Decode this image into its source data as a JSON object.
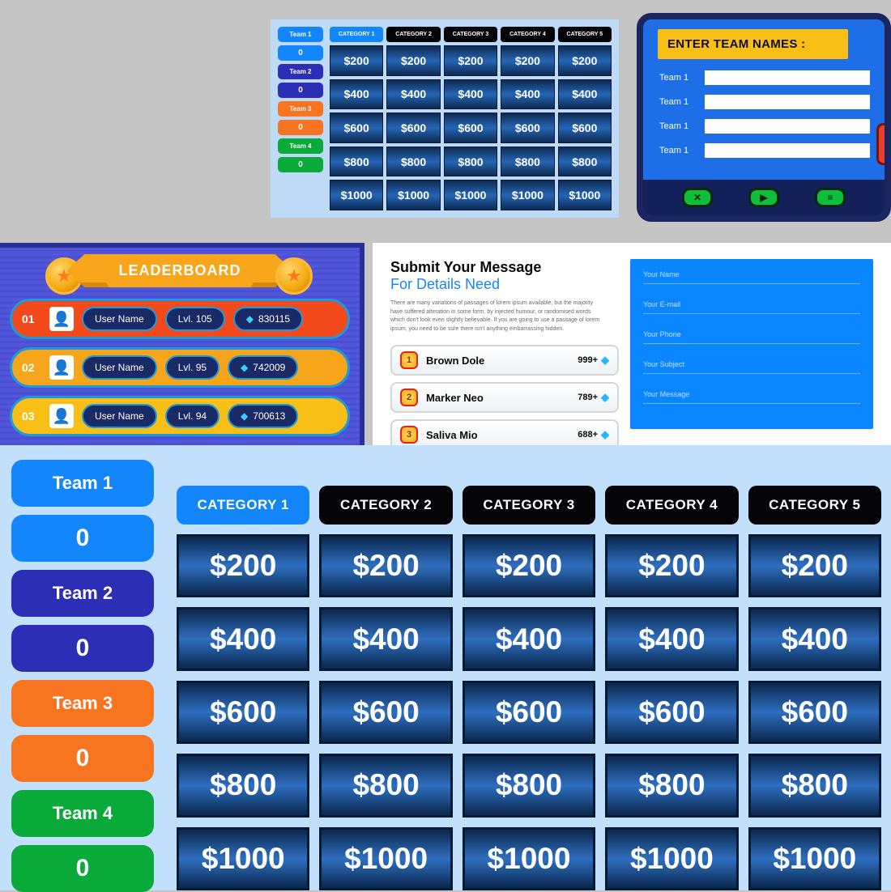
{
  "colors": {
    "team1": "#1486fb",
    "team2": "#2c2fb5",
    "team3": "#f77421",
    "team4": "#0aaa3a",
    "cat_active": "#1486fb",
    "cat_inactive": "#050509",
    "cell_grad_top": "#0b274e",
    "cell_grad_mid": "#2e6fbf",
    "big_bg": "#c2e0fb",
    "lb_row1": "#f24a1c",
    "lb_row2": "#f7a61c",
    "lb_row3": "#f8c016",
    "form_blue": "#0a86ff"
  },
  "thumb_board": {
    "teams": [
      {
        "name": "Team 1",
        "score": "0",
        "color": "#1486fb"
      },
      {
        "name": "Team 2",
        "score": "0",
        "color": "#2c2fb5"
      },
      {
        "name": "Team 3",
        "score": "0",
        "color": "#f77421"
      },
      {
        "name": "Team 4",
        "score": "0",
        "color": "#0aaa3a"
      }
    ],
    "categories": [
      "CATEGORY 1",
      "CATEGORY 2",
      "CATEGORY 3",
      "CATEGORY 4",
      "CATEGORY 5"
    ],
    "values": [
      "$200",
      "$400",
      "$600",
      "$800",
      "$1000"
    ]
  },
  "enter_names": {
    "title": "ENTER TEAM NAMES :",
    "rows": [
      "Team 1",
      "Team 1",
      "Team 1",
      "Team 1"
    ],
    "buttons": {
      "close": "✕",
      "play": "▶",
      "menu": "≡"
    }
  },
  "leaderboard": {
    "title": "LEADERBOARD",
    "rows": [
      {
        "rank": "01",
        "name": "User Name",
        "level": "Lvl. 105",
        "points": "830115",
        "bg": "#f24a1c"
      },
      {
        "rank": "02",
        "name": "User Name",
        "level": "Lvl. 95",
        "points": "742009",
        "bg": "#f7a61c"
      },
      {
        "rank": "03",
        "name": "User Name",
        "level": "Lvl. 94",
        "points": "700613",
        "bg": "#f8c016"
      }
    ]
  },
  "submit_form": {
    "heading1": "Submit Your Message",
    "heading2": "For Details Need",
    "paragraph": "There are many variations of passages of lorem ipsum available, but the majority have suffered alteration in some form, by injected humour, or randomised words which don't look even slightly believable. If you are going to use a passage of lorem ipsum, you need to be sure there isn't anything embarrassing hidden.",
    "players": [
      {
        "rank": "1",
        "name": "Brown Dole",
        "pts": "999+"
      },
      {
        "rank": "2",
        "name": "Marker Neo",
        "pts": "789+"
      },
      {
        "rank": "3",
        "name": "Saliva Mio",
        "pts": "688+"
      }
    ],
    "fields": [
      "Your Name",
      "Your E-mail",
      "Your Phone",
      "Your Subject",
      "Your Message"
    ]
  },
  "big_board": {
    "teams": [
      {
        "name": "Team 1",
        "score": "0",
        "color": "#1486fb"
      },
      {
        "name": "Team 2",
        "score": "0",
        "color": "#2c2fb5"
      },
      {
        "name": "Team 3",
        "score": "0",
        "color": "#f77421"
      },
      {
        "name": "Team 4",
        "score": "0",
        "color": "#0aaa3a"
      }
    ],
    "categories": [
      "CATEGORY 1",
      "CATEGORY 2",
      "CATEGORY 3",
      "CATEGORY 4",
      "CATEGORY 5"
    ],
    "values": [
      "$200",
      "$400",
      "$600",
      "$800",
      "$1000"
    ]
  }
}
